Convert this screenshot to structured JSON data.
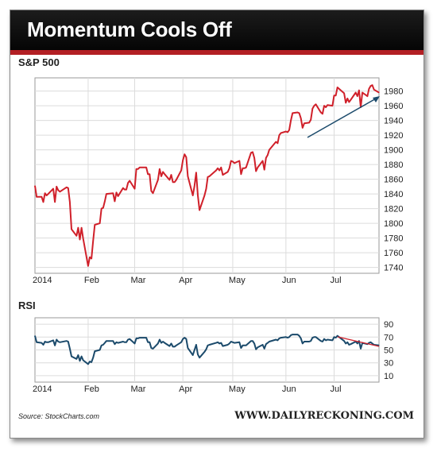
{
  "header": {
    "title": "Momentum Cools Off"
  },
  "footer": {
    "source": "Source: StockCharts.com",
    "site": "WWW.DAILYRECKONING.COM"
  },
  "colors": {
    "price_line": "#d0202a",
    "rsi_line": "#1b4a6b",
    "trend_up_arrow": "#1b4a6b",
    "trend_down_line": "#d0202a",
    "title_bar": "#0a0a0a",
    "accent_strip": "#b31f24"
  },
  "chart_data": [
    {
      "type": "line",
      "title": "S&P 500",
      "xlabel": "",
      "ylabel": "",
      "ylim": [
        1732,
        1998
      ],
      "y_ticks": [
        1740,
        1760,
        1780,
        1800,
        1820,
        1840,
        1860,
        1880,
        1900,
        1920,
        1940,
        1960,
        1980
      ],
      "x_ticks": [
        {
          "label": "2014",
          "date": "2014-01-02"
        },
        {
          "label": "Feb",
          "date": "2014-02-03"
        },
        {
          "label": "Mar",
          "date": "2014-03-03"
        },
        {
          "label": "Apr",
          "date": "2014-04-01"
        },
        {
          "label": "May",
          "date": "2014-05-01"
        },
        {
          "label": "Jun",
          "date": "2014-06-02"
        },
        {
          "label": "Jul",
          "date": "2014-07-01"
        }
      ],
      "xlim": [
        "2014-01-02",
        "2014-07-28"
      ],
      "grid": true,
      "y_axis_side": "right",
      "series": [
        {
          "x": [
            "2014-01-02",
            "2014-01-03",
            "2014-01-06",
            "2014-01-07",
            "2014-01-08",
            "2014-01-09",
            "2014-01-10",
            "2014-01-13",
            "2014-01-14",
            "2014-01-15",
            "2014-01-16",
            "2014-01-17",
            "2014-01-21",
            "2014-01-22",
            "2014-01-23",
            "2014-01-24",
            "2014-01-27",
            "2014-01-28",
            "2014-01-29",
            "2014-01-30",
            "2014-01-31",
            "2014-02-03",
            "2014-02-04",
            "2014-02-05",
            "2014-02-06",
            "2014-02-07",
            "2014-02-10",
            "2014-02-11",
            "2014-02-12",
            "2014-02-13",
            "2014-02-14",
            "2014-02-18",
            "2014-02-19",
            "2014-02-20",
            "2014-02-21",
            "2014-02-24",
            "2014-02-25",
            "2014-02-26",
            "2014-02-27",
            "2014-02-28",
            "2014-03-03",
            "2014-03-04",
            "2014-03-05",
            "2014-03-06",
            "2014-03-07",
            "2014-03-10",
            "2014-03-11",
            "2014-03-12",
            "2014-03-13",
            "2014-03-14",
            "2014-03-17",
            "2014-03-18",
            "2014-03-19",
            "2014-03-20",
            "2014-03-21",
            "2014-03-24",
            "2014-03-25",
            "2014-03-26",
            "2014-03-27",
            "2014-03-28",
            "2014-03-31",
            "2014-04-01",
            "2014-04-02",
            "2014-04-03",
            "2014-04-04",
            "2014-04-07",
            "2014-04-08",
            "2014-04-09",
            "2014-04-10",
            "2014-04-11",
            "2014-04-14",
            "2014-04-15",
            "2014-04-16",
            "2014-04-17",
            "2014-04-21",
            "2014-04-22",
            "2014-04-23",
            "2014-04-24",
            "2014-04-25",
            "2014-04-28",
            "2014-04-29",
            "2014-04-30",
            "2014-05-01",
            "2014-05-02",
            "2014-05-05",
            "2014-05-06",
            "2014-05-07",
            "2014-05-08",
            "2014-05-09",
            "2014-05-12",
            "2014-05-13",
            "2014-05-14",
            "2014-05-15",
            "2014-05-16",
            "2014-05-19",
            "2014-05-20",
            "2014-05-21",
            "2014-05-22",
            "2014-05-23",
            "2014-05-27",
            "2014-05-28",
            "2014-05-29",
            "2014-05-30",
            "2014-06-02",
            "2014-06-03",
            "2014-06-04",
            "2014-06-05",
            "2014-06-06",
            "2014-06-09",
            "2014-06-10",
            "2014-06-11",
            "2014-06-12",
            "2014-06-13",
            "2014-06-16",
            "2014-06-17",
            "2014-06-18",
            "2014-06-19",
            "2014-06-20",
            "2014-06-23",
            "2014-06-24",
            "2014-06-25",
            "2014-06-26",
            "2014-06-27",
            "2014-06-30",
            "2014-07-01",
            "2014-07-02",
            "2014-07-03",
            "2014-07-07",
            "2014-07-08",
            "2014-07-09",
            "2014-07-10",
            "2014-07-11",
            "2014-07-14",
            "2014-07-15",
            "2014-07-16",
            "2014-07-17",
            "2014-07-18",
            "2014-07-21",
            "2014-07-22",
            "2014-07-23",
            "2014-07-24",
            "2014-07-25",
            "2014-07-28"
          ],
          "values": [
            1851,
            1836,
            1836,
            1829,
            1841,
            1838,
            1840,
            1847,
            1829,
            1850,
            1845,
            1843,
            1849,
            1848,
            1829,
            1792,
            1783,
            1794,
            1778,
            1794,
            1779,
            1742,
            1754,
            1752,
            1776,
            1798,
            1800,
            1820,
            1821,
            1830,
            1840,
            1841,
            1830,
            1842,
            1837,
            1848,
            1846,
            1846,
            1855,
            1858,
            1847,
            1874,
            1874,
            1876,
            1876,
            1876,
            1867,
            1867,
            1844,
            1841,
            1859,
            1874,
            1864,
            1870,
            1867,
            1859,
            1866,
            1856,
            1856,
            1859,
            1872,
            1886,
            1894,
            1890,
            1864,
            1838,
            1851,
            1869,
            1838,
            1818,
            1838,
            1847,
            1863,
            1864,
            1872,
            1875,
            1872,
            1876,
            1866,
            1870,
            1875,
            1885,
            1884,
            1882,
            1885,
            1867,
            1875,
            1875,
            1876,
            1896,
            1897,
            1889,
            1871,
            1876,
            1885,
            1873,
            1889,
            1893,
            1900,
            1911,
            1909,
            1920,
            1923,
            1925,
            1924,
            1927,
            1940,
            1950,
            1951,
            1950,
            1943,
            1930,
            1936,
            1937,
            1941,
            1956,
            1960,
            1962,
            1951,
            1949,
            1960,
            1958,
            1961,
            1960,
            1974,
            1974,
            1985,
            1977,
            1964,
            1970,
            1965,
            1968,
            1978,
            1973,
            1981,
            1958,
            1978,
            1973,
            1983,
            1987,
            1988,
            1982,
            1978
          ],
          "name": ""
        }
      ]
    },
    {
      "type": "line",
      "title": "RSI",
      "xlabel": "",
      "ylabel": "",
      "ylim": [
        0,
        100
      ],
      "y_ticks": [
        10,
        30,
        50,
        70,
        90
      ],
      "x_ticks": [
        {
          "label": "2014",
          "date": "2014-01-02"
        },
        {
          "label": "Feb",
          "date": "2014-02-03"
        },
        {
          "label": "Mar",
          "date": "2014-03-03"
        },
        {
          "label": "Apr",
          "date": "2014-04-01"
        },
        {
          "label": "May",
          "date": "2014-05-01"
        },
        {
          "label": "Jun",
          "date": "2014-06-02"
        },
        {
          "label": "Jul",
          "date": "2014-07-01"
        }
      ],
      "xlim": [
        "2014-01-02",
        "2014-07-28"
      ],
      "grid": true,
      "y_axis_side": "right",
      "series": [
        {
          "x": [
            "2014-01-02",
            "2014-01-03",
            "2014-01-06",
            "2014-01-07",
            "2014-01-08",
            "2014-01-09",
            "2014-01-10",
            "2014-01-13",
            "2014-01-14",
            "2014-01-15",
            "2014-01-16",
            "2014-01-17",
            "2014-01-21",
            "2014-01-22",
            "2014-01-23",
            "2014-01-24",
            "2014-01-27",
            "2014-01-28",
            "2014-01-29",
            "2014-01-30",
            "2014-01-31",
            "2014-02-03",
            "2014-02-04",
            "2014-02-05",
            "2014-02-06",
            "2014-02-07",
            "2014-02-10",
            "2014-02-11",
            "2014-02-12",
            "2014-02-13",
            "2014-02-14",
            "2014-02-18",
            "2014-02-19",
            "2014-02-20",
            "2014-02-21",
            "2014-02-24",
            "2014-02-25",
            "2014-02-26",
            "2014-02-27",
            "2014-02-28",
            "2014-03-03",
            "2014-03-04",
            "2014-03-05",
            "2014-03-06",
            "2014-03-07",
            "2014-03-10",
            "2014-03-11",
            "2014-03-12",
            "2014-03-13",
            "2014-03-14",
            "2014-03-17",
            "2014-03-18",
            "2014-03-19",
            "2014-03-20",
            "2014-03-21",
            "2014-03-24",
            "2014-03-25",
            "2014-03-26",
            "2014-03-27",
            "2014-03-28",
            "2014-03-31",
            "2014-04-01",
            "2014-04-02",
            "2014-04-03",
            "2014-04-04",
            "2014-04-07",
            "2014-04-08",
            "2014-04-09",
            "2014-04-10",
            "2014-04-11",
            "2014-04-14",
            "2014-04-15",
            "2014-04-16",
            "2014-04-17",
            "2014-04-21",
            "2014-04-22",
            "2014-04-23",
            "2014-04-24",
            "2014-04-25",
            "2014-04-28",
            "2014-04-29",
            "2014-04-30",
            "2014-05-01",
            "2014-05-02",
            "2014-05-05",
            "2014-05-06",
            "2014-05-07",
            "2014-05-08",
            "2014-05-09",
            "2014-05-12",
            "2014-05-13",
            "2014-05-14",
            "2014-05-15",
            "2014-05-16",
            "2014-05-19",
            "2014-05-20",
            "2014-05-21",
            "2014-05-22",
            "2014-05-23",
            "2014-05-27",
            "2014-05-28",
            "2014-05-29",
            "2014-05-30",
            "2014-06-02",
            "2014-06-03",
            "2014-06-04",
            "2014-06-05",
            "2014-06-06",
            "2014-06-09",
            "2014-06-10",
            "2014-06-11",
            "2014-06-12",
            "2014-06-13",
            "2014-06-16",
            "2014-06-17",
            "2014-06-18",
            "2014-06-19",
            "2014-06-20",
            "2014-06-23",
            "2014-06-24",
            "2014-06-25",
            "2014-06-26",
            "2014-06-27",
            "2014-06-30",
            "2014-07-01",
            "2014-07-02",
            "2014-07-03",
            "2014-07-07",
            "2014-07-08",
            "2014-07-09",
            "2014-07-10",
            "2014-07-11",
            "2014-07-14",
            "2014-07-15",
            "2014-07-16",
            "2014-07-17",
            "2014-07-18",
            "2014-07-21",
            "2014-07-22",
            "2014-07-23",
            "2014-07-24",
            "2014-07-25",
            "2014-07-28"
          ],
          "values": [
            72,
            62,
            61,
            58,
            63,
            62,
            62,
            65,
            57,
            66,
            63,
            62,
            64,
            63,
            52,
            40,
            36,
            42,
            33,
            40,
            34,
            28,
            32,
            31,
            38,
            48,
            50,
            57,
            58,
            61,
            64,
            64,
            59,
            62,
            61,
            63,
            62,
            62,
            66,
            67,
            60,
            68,
            68,
            69,
            69,
            69,
            62,
            62,
            53,
            52,
            60,
            66,
            61,
            63,
            61,
            56,
            60,
            55,
            55,
            57,
            62,
            67,
            69,
            67,
            53,
            42,
            50,
            58,
            43,
            38,
            47,
            51,
            57,
            58,
            61,
            62,
            60,
            61,
            56,
            58,
            60,
            63,
            62,
            61,
            62,
            53,
            57,
            57,
            57,
            64,
            64,
            60,
            51,
            54,
            58,
            52,
            59,
            61,
            63,
            66,
            65,
            68,
            69,
            70,
            69,
            70,
            73,
            74,
            74,
            72,
            68,
            60,
            63,
            63,
            64,
            69,
            70,
            70,
            64,
            63,
            67,
            65,
            66,
            65,
            70,
            69,
            72,
            64,
            60,
            62,
            58,
            59,
            63,
            60,
            64,
            52,
            61,
            59,
            61,
            62,
            60,
            58,
            57
          ],
          "name": ""
        }
      ]
    }
  ]
}
